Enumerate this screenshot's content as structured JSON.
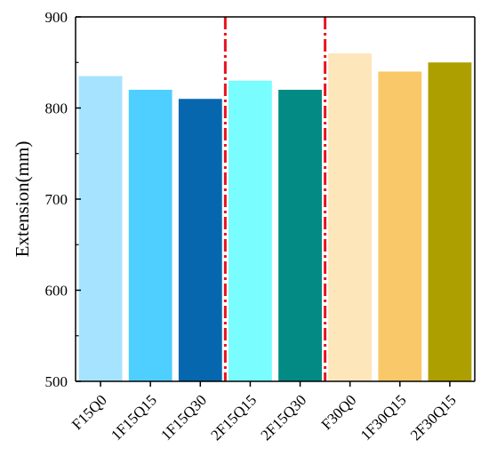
{
  "chart_data": {
    "type": "bar",
    "title": "",
    "xlabel": "",
    "ylabel": "Extension(mm)",
    "ylim": [
      500,
      900
    ],
    "yticks": [
      500,
      600,
      700,
      800,
      900
    ],
    "grid": false,
    "legend": "none",
    "categories": [
      "F15Q0",
      "1F15Q15",
      "1F15Q30",
      "2F15Q15",
      "2F15Q30",
      "F30Q0",
      "1F30Q15",
      "2F30Q15"
    ],
    "values": [
      835,
      820,
      810,
      830,
      820,
      860,
      840,
      850
    ],
    "bar_colors": [
      "#A6E3FF",
      "#4FCFFF",
      "#0767AE",
      "#7AFDFF",
      "#038A85",
      "#FEE6BB",
      "#F9C868",
      "#AE9F00"
    ],
    "separators_after_category_index": [
      2,
      4
    ],
    "separator_color": "#E8141C"
  }
}
